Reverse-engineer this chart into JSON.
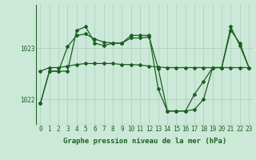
{
  "bg_color": "#cce8d8",
  "grid_color": "#aaccbb",
  "line_color": "#1a6020",
  "xlabel": "Graphe pression niveau de la mer (hPa)",
  "xlabel_fontsize": 6.5,
  "tick_fontsize": 5.5,
  "ylim": [
    1021.5,
    1023.85
  ],
  "xlim": [
    -0.5,
    23.5
  ],
  "xticks": [
    0,
    1,
    2,
    3,
    4,
    5,
    6,
    7,
    8,
    9,
    10,
    11,
    12,
    13,
    14,
    15,
    16,
    17,
    18,
    19,
    20,
    21,
    22,
    23
  ],
  "yticks": [
    1022.0,
    1023.0
  ],
  "ytick_labels": [
    "1022",
    "1023"
  ],
  "line1_y": [
    1022.55,
    1022.62,
    1022.62,
    1022.65,
    1022.68,
    1022.7,
    1022.7,
    1022.7,
    1022.7,
    1022.68,
    1022.68,
    1022.67,
    1022.65,
    1022.63,
    1022.62,
    1022.62,
    1022.62,
    1022.62,
    1022.62,
    1022.62,
    1022.62,
    1022.62,
    1022.62,
    1022.62
  ],
  "line2_y": [
    1021.92,
    1022.55,
    1022.55,
    1023.03,
    1023.25,
    1023.28,
    1023.18,
    1023.12,
    1023.1,
    1023.1,
    1023.2,
    1023.2,
    1023.22,
    1022.6,
    1021.77,
    1021.77,
    1021.77,
    1022.1,
    1022.35,
    1022.62,
    1022.62,
    1023.35,
    1023.1,
    1022.62
  ],
  "line3_y": [
    1021.92,
    1022.55,
    1022.55,
    1022.55,
    1023.35,
    1023.42,
    1023.1,
    1023.05,
    1023.1,
    1023.1,
    1023.25,
    1023.25,
    1023.25,
    1022.2,
    1021.77,
    1021.77,
    1021.77,
    1021.8,
    1022.0,
    1022.62,
    1022.62,
    1023.42,
    1023.05,
    1022.62
  ]
}
